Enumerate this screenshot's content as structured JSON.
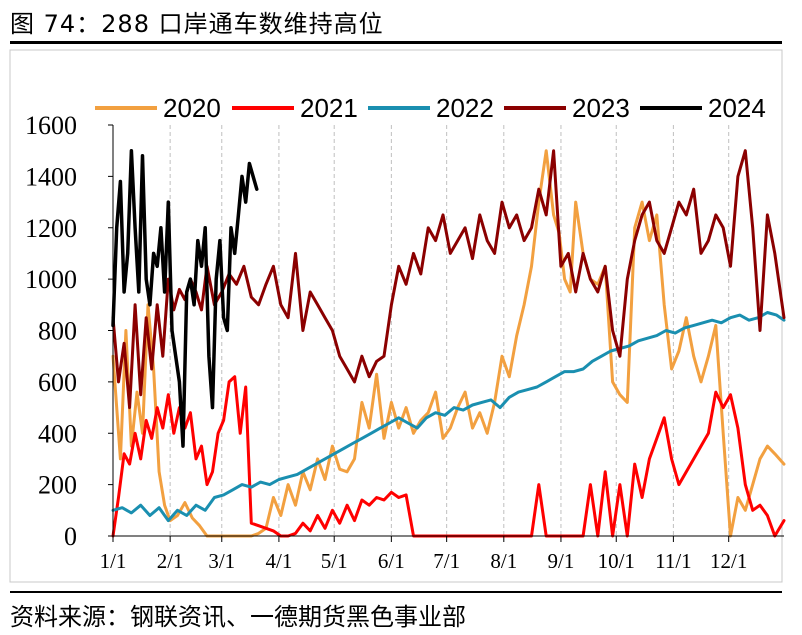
{
  "figure": {
    "title": "图 74：288 口岸通车数维持高位",
    "source": "资料来源：钢联资讯、一德期货黑色事业部"
  },
  "chart_data": {
    "type": "line",
    "title": "",
    "xlabel": "",
    "ylabel": "",
    "ylim": [
      0,
      1600
    ],
    "yticks": [
      0,
      200,
      400,
      600,
      800,
      1000,
      1200,
      1400,
      1600
    ],
    "x_unit": "day of year",
    "xlim": [
      1,
      365
    ],
    "xticks": [
      {
        "label": "1/1",
        "day": 1
      },
      {
        "label": "2/1",
        "day": 32
      },
      {
        "label": "3/1",
        "day": 60
      },
      {
        "label": "4/1",
        "day": 91
      },
      {
        "label": "5/1",
        "day": 121
      },
      {
        "label": "6/1",
        "day": 152
      },
      {
        "label": "7/1",
        "day": 182
      },
      {
        "label": "8/1",
        "day": 213
      },
      {
        "label": "9/1",
        "day": 244
      },
      {
        "label": "10/1",
        "day": 274
      },
      {
        "label": "11/1",
        "day": 305
      },
      {
        "label": "12/1",
        "day": 335
      }
    ],
    "grid": "vertical dashed at month ticks",
    "legend_position": "top",
    "series": [
      {
        "name": "2020",
        "color": "#F2A040",
        "width": 3,
        "x": [
          1,
          5,
          8,
          11,
          14,
          17,
          20,
          23,
          26,
          29,
          32,
          36,
          40,
          44,
          48,
          52,
          56,
          60,
          64,
          68,
          72,
          76,
          80,
          84,
          88,
          92,
          96,
          100,
          104,
          108,
          112,
          116,
          120,
          124,
          128,
          132,
          136,
          140,
          144,
          148,
          152,
          156,
          160,
          164,
          168,
          172,
          176,
          180,
          184,
          188,
          192,
          196,
          200,
          204,
          208,
          212,
          216,
          220,
          224,
          228,
          232,
          236,
          240,
          243,
          246,
          249,
          252,
          256,
          260,
          264,
          268,
          272,
          276,
          280,
          284,
          288,
          292,
          296,
          300,
          304,
          308,
          312,
          316,
          320,
          324,
          328,
          332,
          336,
          340,
          344,
          348,
          352,
          356,
          360,
          365
        ],
        "y": [
          700,
          300,
          800,
          350,
          560,
          400,
          900,
          650,
          250,
          120,
          60,
          80,
          130,
          70,
          40,
          0,
          0,
          0,
          0,
          0,
          0,
          0,
          10,
          30,
          150,
          80,
          200,
          120,
          250,
          180,
          300,
          220,
          350,
          260,
          250,
          300,
          520,
          420,
          630,
          380,
          520,
          420,
          500,
          400,
          450,
          480,
          560,
          380,
          420,
          500,
          560,
          420,
          480,
          400,
          520,
          700,
          620,
          780,
          900,
          1050,
          1300,
          1500,
          1250,
          1180,
          1000,
          950,
          1300,
          1100,
          1000,
          980,
          1050,
          600,
          550,
          520,
          1200,
          1300,
          1150,
          1250,
          900,
          650,
          720,
          850,
          700,
          600,
          700,
          820,
          400,
          0,
          150,
          100,
          200,
          300,
          350,
          320,
          280
        ]
      },
      {
        "name": "2021",
        "color": "#FF0000",
        "width": 3,
        "x": [
          1,
          4,
          7,
          10,
          13,
          16,
          19,
          22,
          25,
          28,
          31,
          34,
          37,
          40,
          43,
          46,
          49,
          52,
          55,
          58,
          61,
          64,
          67,
          70,
          73,
          76,
          80,
          84,
          88,
          92,
          96,
          100,
          104,
          108,
          112,
          116,
          120,
          124,
          128,
          132,
          136,
          140,
          144,
          148,
          152,
          156,
          160,
          164,
          168,
          172,
          176,
          180,
          184,
          188,
          192,
          196,
          200,
          204,
          208,
          212,
          216,
          220,
          224,
          228,
          232,
          236,
          240,
          244,
          248,
          252,
          256,
          260,
          264,
          268,
          272,
          276,
          280,
          284,
          288,
          292,
          296,
          300,
          304,
          308,
          312,
          316,
          320,
          324,
          328,
          332,
          336,
          340,
          344,
          348,
          352,
          356,
          360,
          365
        ],
        "y": [
          0,
          150,
          320,
          280,
          400,
          300,
          450,
          380,
          500,
          420,
          550,
          400,
          500,
          420,
          480,
          300,
          350,
          200,
          250,
          400,
          450,
          600,
          620,
          400,
          580,
          50,
          40,
          30,
          20,
          0,
          0,
          10,
          50,
          20,
          80,
          30,
          100,
          50,
          120,
          60,
          140,
          120,
          150,
          140,
          170,
          150,
          160,
          0,
          0,
          0,
          0,
          0,
          0,
          0,
          0,
          0,
          0,
          0,
          0,
          0,
          0,
          0,
          0,
          0,
          200,
          0,
          0,
          0,
          0,
          0,
          0,
          200,
          0,
          250,
          0,
          200,
          0,
          280,
          150,
          300,
          380,
          460,
          300,
          200,
          250,
          300,
          350,
          400,
          560,
          500,
          550,
          420,
          200,
          100,
          120,
          80,
          0,
          60
        ]
      },
      {
        "name": "2022",
        "color": "#1A8FB0",
        "width": 3,
        "x": [
          1,
          6,
          11,
          16,
          21,
          26,
          31,
          36,
          41,
          46,
          51,
          56,
          61,
          66,
          71,
          76,
          81,
          86,
          91,
          96,
          101,
          106,
          111,
          116,
          121,
          126,
          131,
          136,
          141,
          146,
          151,
          156,
          161,
          166,
          171,
          176,
          181,
          186,
          191,
          196,
          201,
          206,
          211,
          216,
          221,
          226,
          231,
          236,
          241,
          246,
          251,
          256,
          261,
          266,
          271,
          276,
          281,
          286,
          291,
          296,
          301,
          306,
          311,
          316,
          321,
          326,
          331,
          336,
          341,
          346,
          351,
          356,
          361,
          365
        ],
        "y": [
          100,
          110,
          90,
          120,
          80,
          110,
          60,
          100,
          80,
          120,
          100,
          150,
          160,
          180,
          200,
          190,
          210,
          200,
          220,
          230,
          240,
          260,
          280,
          300,
          320,
          340,
          360,
          380,
          400,
          420,
          440,
          460,
          440,
          420,
          460,
          480,
          470,
          500,
          490,
          510,
          520,
          530,
          500,
          540,
          560,
          570,
          580,
          600,
          620,
          640,
          640,
          650,
          680,
          700,
          720,
          730,
          740,
          760,
          770,
          780,
          800,
          790,
          810,
          820,
          830,
          840,
          830,
          850,
          860,
          840,
          850,
          870,
          860,
          840
        ]
      },
      {
        "name": "2023",
        "color": "#8B0000",
        "width": 3,
        "x": [
          1,
          4,
          7,
          10,
          13,
          16,
          19,
          22,
          25,
          28,
          31,
          34,
          37,
          40,
          43,
          46,
          49,
          52,
          56,
          60,
          64,
          68,
          72,
          76,
          80,
          84,
          88,
          92,
          96,
          100,
          104,
          108,
          112,
          116,
          120,
          124,
          128,
          132,
          136,
          140,
          144,
          148,
          152,
          156,
          160,
          164,
          168,
          172,
          176,
          180,
          184,
          188,
          192,
          196,
          200,
          204,
          208,
          212,
          216,
          220,
          224,
          228,
          232,
          236,
          240,
          244,
          248,
          252,
          256,
          260,
          264,
          268,
          272,
          276,
          280,
          284,
          288,
          292,
          296,
          300,
          304,
          308,
          312,
          316,
          320,
          324,
          328,
          332,
          336,
          340,
          344,
          348,
          352,
          356,
          360,
          365
        ],
        "y": [
          850,
          600,
          750,
          500,
          900,
          550,
          850,
          650,
          900,
          700,
          1000,
          880,
          960,
          920,
          1000,
          950,
          880,
          1050,
          900,
          950,
          1020,
          980,
          1050,
          930,
          900,
          980,
          1050,
          900,
          850,
          1100,
          800,
          950,
          900,
          850,
          800,
          700,
          650,
          600,
          700,
          620,
          680,
          700,
          900,
          1050,
          980,
          1100,
          1020,
          1200,
          1150,
          1250,
          1100,
          1150,
          1200,
          1080,
          1250,
          1150,
          1100,
          1300,
          1200,
          1250,
          1150,
          1200,
          1350,
          1250,
          1500,
          1050,
          1100,
          950,
          1100,
          1000,
          950,
          1050,
          800,
          700,
          1000,
          1150,
          1250,
          1300,
          1150,
          1100,
          1200,
          1300,
          1250,
          1350,
          1100,
          1150,
          1250,
          1200,
          1050,
          1400,
          1500,
          1200,
          800,
          1250,
          1100,
          850
        ]
      },
      {
        "name": "2024",
        "color": "#000000",
        "width": 3.5,
        "x": [
          1,
          3,
          5,
          7,
          9,
          11,
          13,
          15,
          17,
          19,
          21,
          23,
          25,
          27,
          29,
          31,
          33,
          35,
          37,
          39,
          41,
          43,
          45,
          47,
          49,
          51,
          53,
          55,
          57,
          59,
          61,
          63,
          65,
          67,
          69,
          71,
          73,
          75,
          77,
          79
        ],
        "y": [
          820,
          1200,
          1380,
          950,
          1100,
          1500,
          1200,
          950,
          1480,
          1000,
          900,
          1100,
          1050,
          1200,
          950,
          1300,
          800,
          700,
          600,
          350,
          950,
          1000,
          900,
          1150,
          1050,
          1200,
          700,
          500,
          1000,
          1150,
          850,
          800,
          1200,
          1100,
          1250,
          1400,
          1300,
          1450,
          1400,
          1350
        ]
      }
    ]
  }
}
